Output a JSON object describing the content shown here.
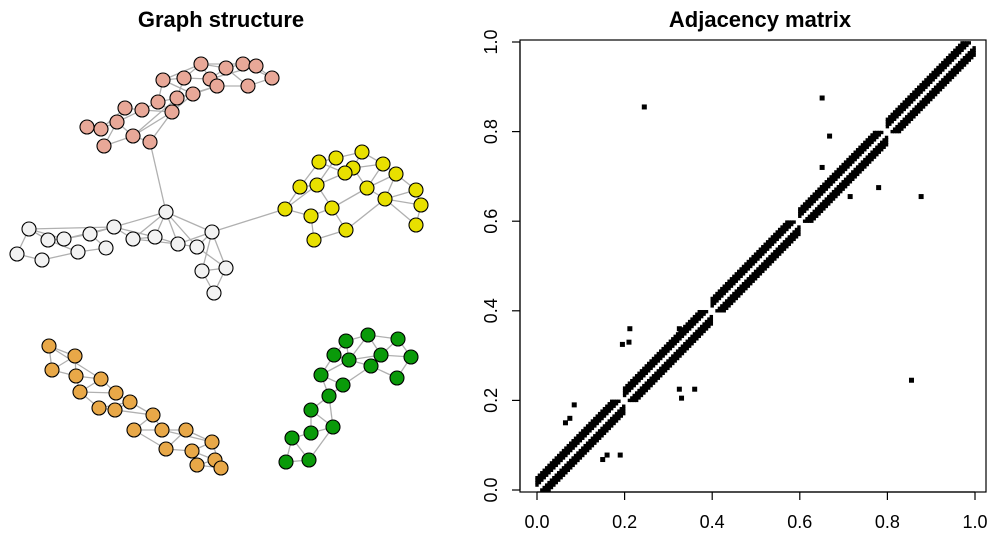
{
  "chart_data": [
    {
      "type": "network",
      "title": "Graph structure",
      "groups": [
        {
          "name": "salmon",
          "color": "#E8A898"
        },
        {
          "name": "white",
          "color": "#F2F2F2"
        },
        {
          "name": "yellow",
          "color": "#E8E000"
        },
        {
          "name": "orange",
          "color": "#E8A848"
        },
        {
          "name": "green",
          "color": "#0A9A0A"
        }
      ],
      "edge_color": "#B0B0B0",
      "node_outline_color": "#000000"
    },
    {
      "type": "heatmap",
      "title": "Adjacency matrix",
      "xlabel": "",
      "ylabel": "",
      "xlim": [
        0.0,
        1.0
      ],
      "ylim": [
        0.0,
        1.0
      ],
      "x_ticks": [
        "0.0",
        "0.2",
        "0.4",
        "0.6",
        "0.8",
        "1.0"
      ],
      "y_ticks": [
        "0.0",
        "0.2",
        "0.4",
        "0.6",
        "0.8",
        "1.0"
      ],
      "grid": false,
      "cell_color": "#000000",
      "blocks": [
        {
          "start": 0.0,
          "end": 0.2
        },
        {
          "start": 0.2,
          "end": 0.4
        },
        {
          "start": 0.4,
          "end": 0.6
        },
        {
          "start": 0.6,
          "end": 0.8
        },
        {
          "start": 0.8,
          "end": 1.0
        }
      ],
      "band_halfwidth": 0.03,
      "band_center_gap": 0.006,
      "off_diagonal_points": [
        [
          0.245,
          0.855
        ],
        [
          0.651,
          0.875
        ],
        [
          0.668,
          0.79
        ],
        [
          0.651,
          0.72
        ],
        [
          0.78,
          0.675
        ],
        [
          0.715,
          0.655
        ],
        [
          0.877,
          0.655
        ],
        [
          0.855,
          0.245
        ],
        [
          0.212,
          0.36
        ],
        [
          0.325,
          0.36
        ],
        [
          0.21,
          0.33
        ],
        [
          0.195,
          0.325
        ],
        [
          0.325,
          0.225
        ],
        [
          0.36,
          0.225
        ],
        [
          0.33,
          0.205
        ],
        [
          0.085,
          0.19
        ],
        [
          0.075,
          0.16
        ],
        [
          0.065,
          0.15
        ],
        [
          0.16,
          0.078
        ],
        [
          0.19,
          0.078
        ],
        [
          0.15,
          0.068
        ]
      ]
    }
  ]
}
